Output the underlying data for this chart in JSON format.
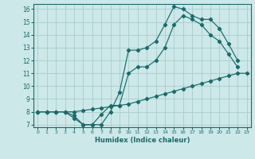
{
  "xlabel": "Humidex (Indice chaleur)",
  "bg_color": "#cce8e8",
  "grid_color": "#aacccc",
  "line_color": "#1a6b6b",
  "xlim": [
    -0.5,
    23.5
  ],
  "ylim": [
    6.8,
    16.4
  ],
  "yticks": [
    7,
    8,
    9,
    10,
    11,
    12,
    13,
    14,
    15,
    16
  ],
  "xticks": [
    0,
    1,
    2,
    3,
    4,
    5,
    6,
    7,
    8,
    9,
    10,
    11,
    12,
    13,
    14,
    15,
    16,
    17,
    18,
    19,
    20,
    21,
    22,
    23
  ],
  "line1_x": [
    0,
    1,
    2,
    3,
    4,
    5,
    6,
    7,
    8,
    9,
    10,
    11,
    12,
    13,
    14,
    15,
    16,
    17,
    18,
    19,
    20,
    21,
    22
  ],
  "line1_y": [
    8,
    8,
    8,
    8,
    7.7,
    7.0,
    7.0,
    7.0,
    8.0,
    9.5,
    12.8,
    12.8,
    13.0,
    13.5,
    14.8,
    16.2,
    16.0,
    15.5,
    15.2,
    15.2,
    14.5,
    13.3,
    12.0
  ],
  "line2_x": [
    0,
    1,
    2,
    3,
    4,
    5,
    6,
    7,
    8,
    9,
    10,
    11,
    12,
    13,
    14,
    15,
    16,
    17,
    18,
    19,
    20,
    21,
    22
  ],
  "line2_y": [
    8,
    8,
    8,
    8,
    7.5,
    7.0,
    7.0,
    7.8,
    8.5,
    8.5,
    11.0,
    11.5,
    11.5,
    12.0,
    13.0,
    14.8,
    15.5,
    15.2,
    14.8,
    14.0,
    13.5,
    12.5,
    11.5
  ],
  "line3_x": [
    0,
    1,
    2,
    3,
    4,
    5,
    6,
    7,
    8,
    9,
    10,
    11,
    12,
    13,
    14,
    15,
    16,
    17,
    18,
    19,
    20,
    21,
    22,
    23
  ],
  "line3_y": [
    8,
    8,
    8,
    8,
    8,
    8.1,
    8.2,
    8.3,
    8.4,
    8.5,
    8.6,
    8.8,
    9.0,
    9.2,
    9.4,
    9.6,
    9.8,
    10.0,
    10.2,
    10.4,
    10.6,
    10.8,
    11.0,
    11.0
  ]
}
